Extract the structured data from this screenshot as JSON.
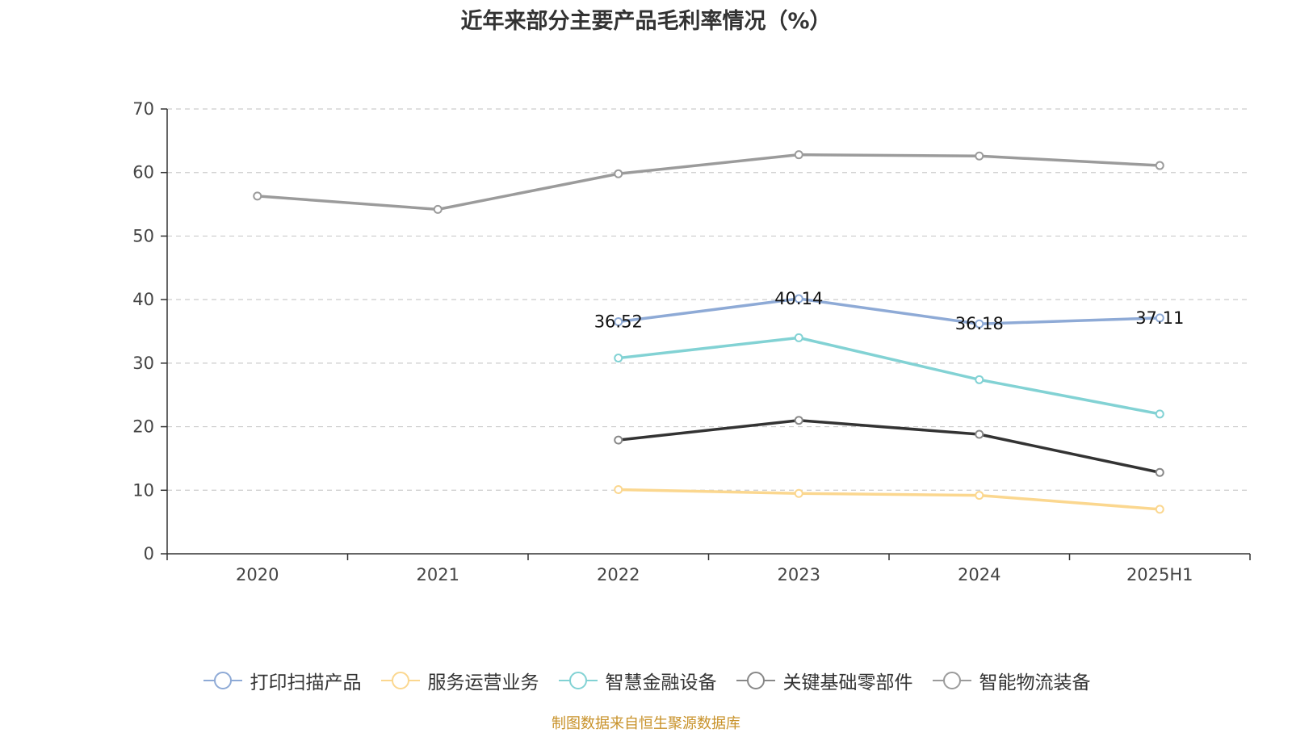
{
  "chart_data": {
    "type": "line",
    "title": "近年来部分主要产品毛利率情况（%）",
    "categories": [
      "2020",
      "2021",
      "2022",
      "2023",
      "2024",
      "2025H1"
    ],
    "ylim": [
      0,
      70
    ],
    "yticks": [
      0,
      10,
      20,
      30,
      40,
      50,
      60,
      70
    ],
    "grid": true,
    "legend_position": "bottom",
    "series": [
      {
        "name": "打印扫描产品",
        "color": "#8eaad6",
        "values": [
          null,
          null,
          36.52,
          40.14,
          36.18,
          37.11
        ],
        "show_labels": true
      },
      {
        "name": "服务运营业务",
        "color": "#fbd78f",
        "values": [
          null,
          null,
          10.1,
          9.5,
          9.2,
          7.0
        ],
        "show_labels": false
      },
      {
        "name": "智慧金融设备",
        "color": "#82d2d4",
        "values": [
          null,
          null,
          30.8,
          34.0,
          27.4,
          22.0
        ],
        "show_labels": false
      },
      {
        "name": "关键基础零部件",
        "color": "#333333",
        "values": [
          null,
          null,
          17.9,
          21.0,
          18.8,
          12.8
        ],
        "show_labels": false
      },
      {
        "name": "智能物流装备",
        "color": "#9b9b9b",
        "values": [
          56.3,
          54.2,
          59.8,
          62.8,
          62.6,
          61.1
        ],
        "show_labels": false
      }
    ]
  },
  "source": "制图数据来自恒生聚源数据库"
}
